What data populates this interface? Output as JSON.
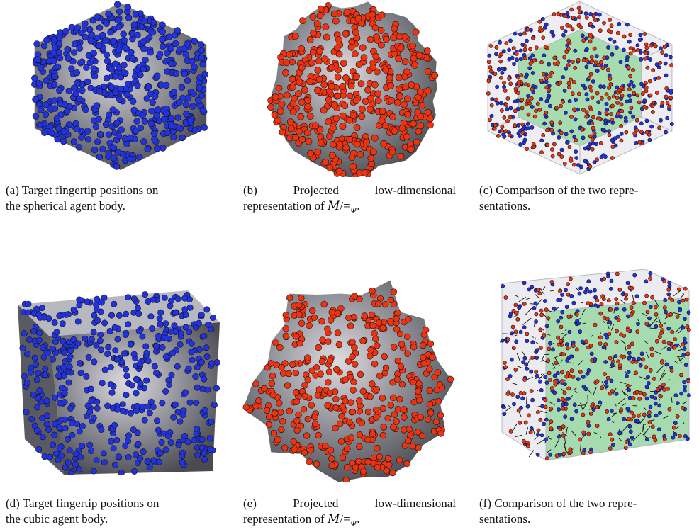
{
  "figure": {
    "panels": [
      {
        "id": "a",
        "surface": "icosahedron",
        "points": "blue",
        "caption_lines": [
          "(a) Target fingertip positions on",
          "the spherical agent body."
        ]
      },
      {
        "id": "b",
        "surface": "blob-round",
        "points": "red",
        "caption_lines": [
          "(b)    Projected    low-dimensional",
          "representation of"
        ]
      },
      {
        "id": "c",
        "surface": "icosahedron-wire",
        "points": "blue-red",
        "caption_lines": [
          "(c) Comparison of the two repre-",
          "sentations."
        ]
      },
      {
        "id": "d",
        "surface": "cube",
        "points": "blue",
        "caption_lines": [
          "(d) Target fingertip positions on",
          "the cubic agent body."
        ]
      },
      {
        "id": "e",
        "surface": "blob-rough",
        "points": "red",
        "caption_lines": [
          "(e)    Projected    low-dimensional",
          "representation of"
        ]
      },
      {
        "id": "f",
        "surface": "cube-wire",
        "points": "blue-red-arrows",
        "caption_lines": [
          "(f) Comparison of the two repre-",
          "sentations."
        ]
      }
    ],
    "math_M": "M",
    "math_slash_eq": "/=",
    "math_psi": "Ψ",
    "math_period": "."
  },
  "colors": {
    "blue_point": "#2233dd",
    "red_point": "#ee3311",
    "surface_dark": "#4a4a50",
    "surface_light": "#dcdce0",
    "green_face": "#8fd49a",
    "wire": "#b8b8c0"
  }
}
